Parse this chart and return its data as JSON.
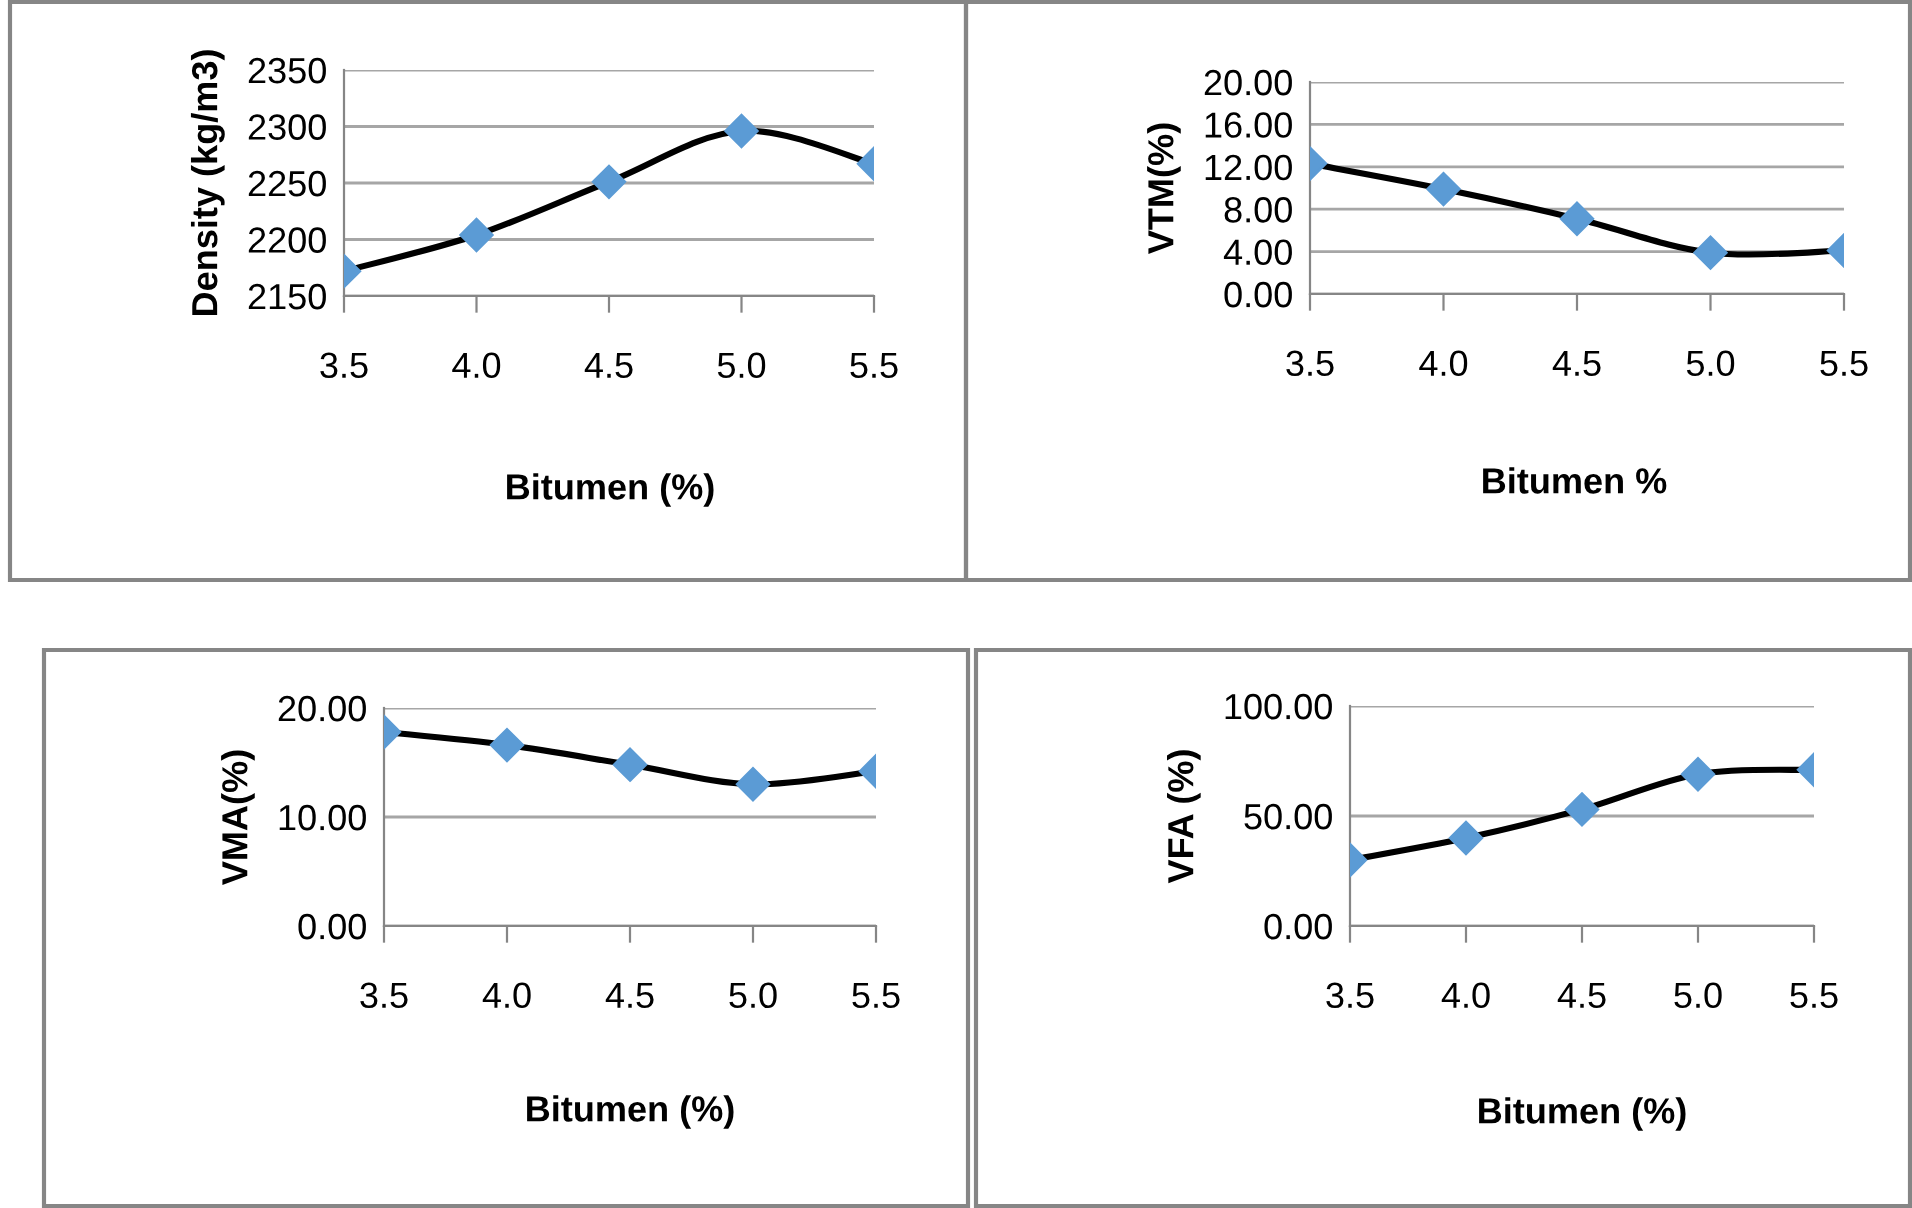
{
  "chart_data": [
    {
      "type": "line",
      "categories": [
        "3.5",
        "4.0",
        "4.5",
        "5.0",
        "5.5"
      ],
      "xlabel": "Bitumen (%)",
      "ylabel": "Density (kg/m3)",
      "ylim": [
        2150,
        2350
      ],
      "yticks": [
        2150,
        2200,
        2250,
        2300,
        2350
      ],
      "grid": "y",
      "marker": "diamond",
      "line_style": "solid",
      "series": [
        {
          "color": "#5b9bd5",
          "values": [
            2172,
            2204,
            2251,
            2296,
            2267
          ]
        }
      ]
    },
    {
      "type": "line",
      "categories": [
        "3.5",
        "4.0",
        "4.5",
        "5.0",
        "5.5"
      ],
      "xlabel": "Bitumen %",
      "ylabel": "VTM(%)",
      "ylim": [
        0,
        20
      ],
      "yticks": [
        {
          "value": 0,
          "label": "0.00"
        },
        {
          "value": 4,
          "label": "4.00"
        },
        {
          "value": 8,
          "label": "8.00"
        },
        {
          "value": 12,
          "label": "12.00"
        },
        {
          "value": 16,
          "label": "16.00"
        },
        {
          "value": 20,
          "label": "20.00"
        }
      ],
      "grid": "y",
      "marker": "diamond",
      "line_style": "solid",
      "series": [
        {
          "color": "#5b9bd5",
          "values": [
            12.3,
            9.9,
            7.1,
            3.9,
            4.1
          ]
        }
      ]
    },
    {
      "type": "line",
      "categories": [
        "3.5",
        "4.0",
        "4.5",
        "5.0",
        "5.5"
      ],
      "xlabel": "Bitumen (%)",
      "ylabel": "VMA(%)",
      "ylim": [
        0,
        20
      ],
      "yticks": [
        {
          "value": 0,
          "label": "0.00"
        },
        {
          "value": 10,
          "label": "10.00"
        },
        {
          "value": 20,
          "label": "20.00"
        }
      ],
      "grid": "y",
      "marker": "diamond",
      "line_style": "solid",
      "series": [
        {
          "color": "#5b9bd5",
          "values": [
            17.8,
            16.6,
            14.8,
            13.0,
            14.2
          ]
        }
      ]
    },
    {
      "type": "line",
      "categories": [
        "3.5",
        "4.0",
        "4.5",
        "5.0",
        "5.5"
      ],
      "xlabel": "Bitumen (%)",
      "ylabel": "VFA (%)",
      "ylim": [
        0,
        100
      ],
      "yticks": [
        {
          "value": 0,
          "label": "0.00"
        },
        {
          "value": 50,
          "label": "50.00"
        },
        {
          "value": 100,
          "label": "100.00"
        }
      ],
      "grid": "y",
      "marker": "diamond",
      "line_style": "solid",
      "series": [
        {
          "color": "#5b9bd5",
          "values": [
            30,
            40,
            53,
            69,
            71
          ]
        }
      ]
    }
  ]
}
